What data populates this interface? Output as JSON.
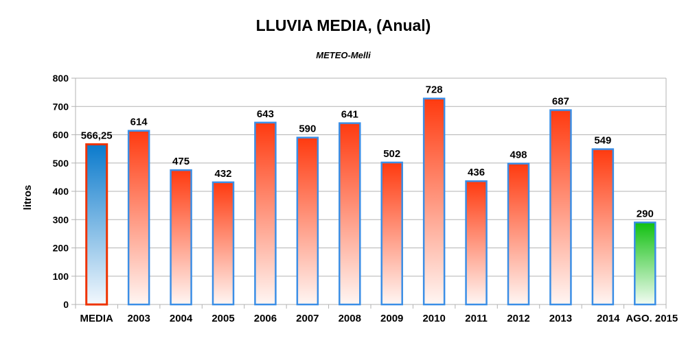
{
  "chart_data": {
    "type": "bar",
    "title": "LLUVIA MEDIA, (Anual)",
    "subtitle": "METEO-Melli",
    "xlabel": "",
    "ylabel": "litros",
    "ylim": [
      0,
      800
    ],
    "yticks": [
      0,
      100,
      200,
      300,
      400,
      500,
      600,
      700,
      800
    ],
    "grid": true,
    "categories": [
      "MEDIA",
      "2003",
      "2004",
      "2005",
      "2006",
      "2007",
      "2008",
      "2009",
      "2010",
      "2011",
      "2012",
      "2013",
      "2014",
      "AGO. 2015"
    ],
    "values": [
      566.25,
      614,
      475,
      432,
      643,
      590,
      641,
      502,
      728,
      436,
      498,
      687,
      549,
      290
    ],
    "data_labels": [
      "566,25",
      "614",
      "475",
      "432",
      "643",
      "590",
      "641",
      "502",
      "728",
      "436",
      "498",
      "687",
      "549",
      "290"
    ],
    "bar_styles": [
      "blue",
      "red",
      "red",
      "red",
      "red",
      "red",
      "red",
      "red",
      "red",
      "red",
      "red",
      "red",
      "red",
      "green"
    ],
    "colors": {
      "red_top": "#ff3a0f",
      "blue_top": "#0a7acc",
      "green_top": "#11c011",
      "border_blue": "#3a8ee6",
      "border_red": "#ee3300",
      "grid": "#b3b3b3"
    }
  }
}
